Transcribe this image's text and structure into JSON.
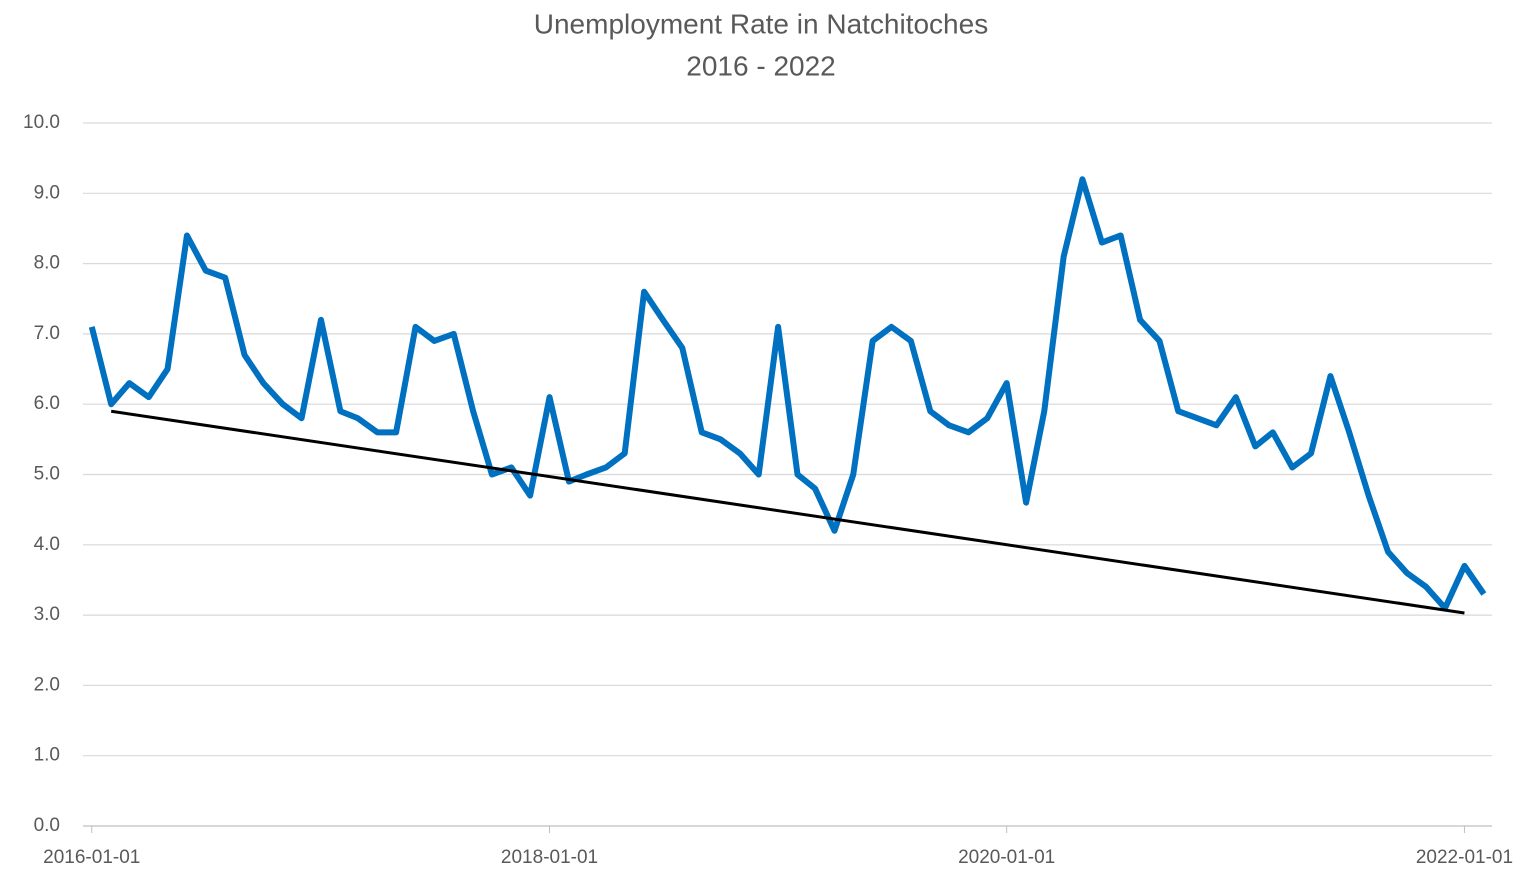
{
  "chart_data": {
    "type": "line",
    "title": "Unemployment Rate in Natchitoches",
    "subtitle": "2016 - 2022",
    "x": [
      "2016-01-01",
      "2016-02-01",
      "2016-03-01",
      "2016-04-01",
      "2016-05-01",
      "2016-06-01",
      "2016-07-01",
      "2016-08-01",
      "2016-09-01",
      "2016-10-01",
      "2016-11-01",
      "2016-12-01",
      "2017-01-01",
      "2017-02-01",
      "2017-03-01",
      "2017-04-01",
      "2017-05-01",
      "2017-06-01",
      "2017-07-01",
      "2017-08-01",
      "2017-09-01",
      "2017-10-01",
      "2017-11-01",
      "2017-12-01",
      "2018-01-01",
      "2018-02-01",
      "2018-03-01",
      "2018-04-01",
      "2018-05-01",
      "2018-06-01",
      "2018-07-01",
      "2018-08-01",
      "2018-09-01",
      "2018-10-01",
      "2018-11-01",
      "2018-12-01",
      "2019-01-01",
      "2019-02-01",
      "2019-03-01",
      "2019-04-01",
      "2019-05-01",
      "2019-06-01",
      "2019-07-01",
      "2019-08-01",
      "2019-09-01",
      "2019-10-01",
      "2019-11-01",
      "2019-12-01",
      "2020-01-01",
      "2020-02-01",
      "2020-03-01",
      "2020-04-01",
      "2020-05-01",
      "2020-06-01",
      "2020-07-01",
      "2020-08-01",
      "2020-09-01",
      "2020-10-01",
      "2020-11-01",
      "2020-12-01",
      "2021-01-01",
      "2021-02-01",
      "2021-03-01",
      "2021-04-01",
      "2021-05-01",
      "2021-06-01",
      "2021-07-01",
      "2021-08-01",
      "2021-09-01",
      "2021-10-01",
      "2021-11-01",
      "2021-12-01",
      "2022-01-01",
      "2022-02-01"
    ],
    "series": [
      {
        "color": "#0070c0",
        "values": [
          7.1,
          6.0,
          6.3,
          6.1,
          6.5,
          8.4,
          7.9,
          7.8,
          6.7,
          6.3,
          6.0,
          5.8,
          7.2,
          5.9,
          5.8,
          5.6,
          5.6,
          7.1,
          6.9,
          7.0,
          5.9,
          5.0,
          5.1,
          4.7,
          6.1,
          4.9,
          5.0,
          5.1,
          5.3,
          7.6,
          7.2,
          6.8,
          5.6,
          5.5,
          5.3,
          5.0,
          7.1,
          5.0,
          4.8,
          4.2,
          5.0,
          6.9,
          7.1,
          6.9,
          5.9,
          5.7,
          5.6,
          5.8,
          6.3,
          4.6,
          5.9,
          8.1,
          9.2,
          8.3,
          8.4,
          7.2,
          6.9,
          5.9,
          5.8,
          5.7,
          6.1,
          5.4,
          5.6,
          5.1,
          5.3,
          6.4,
          5.6,
          4.7,
          3.9,
          3.6,
          3.4,
          3.1,
          3.7,
          3.3
        ]
      }
    ],
    "trendline": {
      "color": "#000000",
      "x": [
        "2016-02-01",
        "2022-01-01"
      ],
      "values": [
        5.9,
        3.03
      ]
    },
    "xlim": [
      "2015-12-18",
      "2022-02-14"
    ],
    "xticks": [
      "2016-01-01",
      "2018-01-01",
      "2020-01-01",
      "2022-01-01"
    ],
    "ylim": [
      0,
      10
    ],
    "yticks": [
      {
        "value": 0,
        "label": "0.0"
      },
      {
        "value": 1,
        "label": "1.0"
      },
      {
        "value": 2,
        "label": "2.0"
      },
      {
        "value": 3,
        "label": "3.0"
      },
      {
        "value": 4,
        "label": "4.0"
      },
      {
        "value": 5,
        "label": "5.0"
      },
      {
        "value": 6,
        "label": "6.0"
      },
      {
        "value": 7,
        "label": "7.0"
      },
      {
        "value": 8,
        "label": "8.0"
      },
      {
        "value": 9,
        "label": "9.0"
      },
      {
        "value": 10,
        "label": "10.0"
      }
    ],
    "grid": true
  }
}
